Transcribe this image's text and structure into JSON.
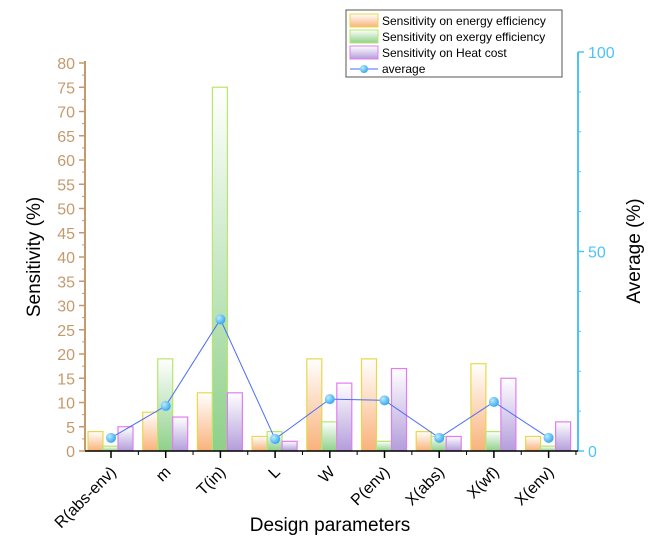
{
  "chart_data": {
    "type": "bar",
    "title": "",
    "xlabel": "Design parameters",
    "ylabel": "Sensitivity (%)",
    "y2label": "Average (%)",
    "ylim": [
      0,
      80
    ],
    "y2lim": [
      0,
      100
    ],
    "yticks": [
      0,
      5,
      10,
      15,
      20,
      25,
      30,
      35,
      40,
      45,
      50,
      55,
      60,
      65,
      70,
      75,
      80
    ],
    "y2ticks": [
      0,
      50,
      100
    ],
    "grid": false,
    "legend_position": "top-right",
    "categories": [
      "R(abs-env)",
      "m",
      "T(in)",
      "L",
      "W",
      "P(env)",
      "X(abs)",
      "X(wf)",
      "X(env)"
    ],
    "series": [
      {
        "name": "Sensitivity on energy efficiency",
        "type": "bar",
        "axis": "left",
        "color": "#f5a86a",
        "edge": "#e8d84a",
        "values": [
          4,
          8,
          12,
          3,
          19,
          19,
          4,
          18,
          3
        ]
      },
      {
        "name": "Sensitivity on exergy efficiency",
        "type": "bar",
        "axis": "left",
        "color": "#8fd08a",
        "edge": "#b6e86a",
        "values": [
          1,
          19,
          75,
          4,
          6,
          2,
          3,
          4,
          1
        ]
      },
      {
        "name": "Sensitivity on Heat cost",
        "type": "bar",
        "axis": "left",
        "color": "#b39ddb",
        "edge": "#e07ef0",
        "values": [
          5,
          7,
          12,
          2,
          14,
          17,
          3,
          15,
          6
        ]
      },
      {
        "name": "average",
        "type": "line",
        "axis": "right",
        "color": "#4a6cf7",
        "marker": "#3db4f2",
        "values": [
          3.3,
          11.3,
          33,
          3,
          13,
          12.7,
          3.3,
          12.3,
          3.3
        ]
      }
    ]
  }
}
